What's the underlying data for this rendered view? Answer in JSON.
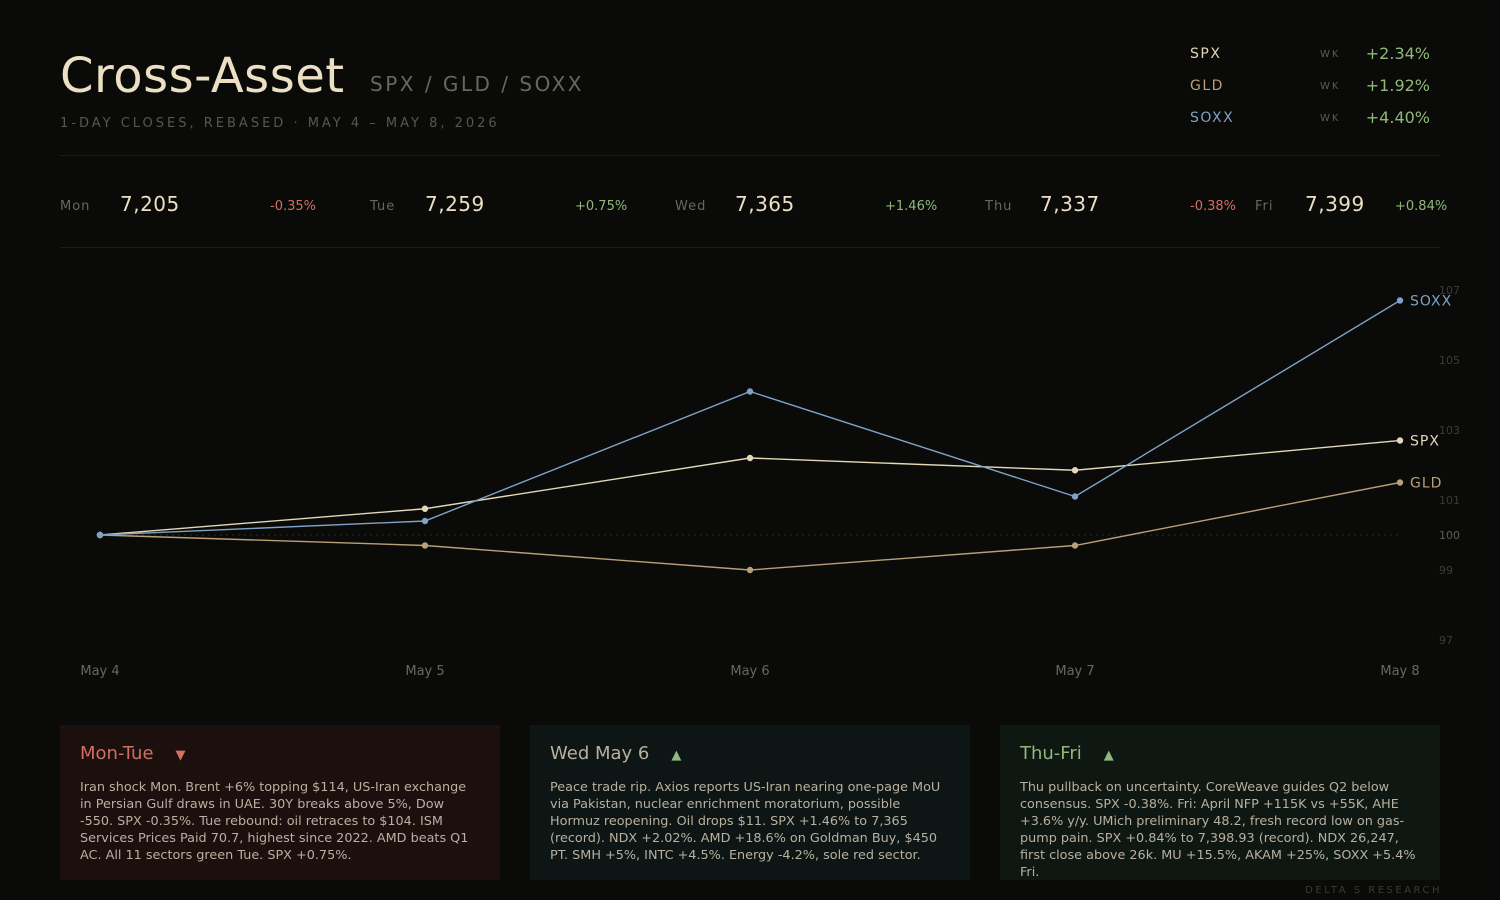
{
  "header": {
    "title": "Cross-Asset",
    "tickers": "SPX / GLD / SOXX",
    "subtitle": "1-DAY CLOSES, REBASED · MAY 4 – MAY 8, 2026"
  },
  "weekly": [
    {
      "name": "SPX",
      "label": "WK",
      "value": "+2.34%",
      "color": "#e3d8b8"
    },
    {
      "name": "GLD",
      "label": "WK",
      "value": "+1.92%",
      "color": "#b8a079"
    },
    {
      "name": "SOXX",
      "label": "WK",
      "value": "+4.40%",
      "color": "#7fa3c7"
    }
  ],
  "days": [
    {
      "day": "Mon",
      "close": "7,205",
      "change": "-0.35%",
      "dir": "neg"
    },
    {
      "day": "Tue",
      "close": "7,259",
      "change": "+0.75%",
      "dir": "pos"
    },
    {
      "day": "Wed",
      "close": "7,365",
      "change": "+1.46%",
      "dir": "pos"
    },
    {
      "day": "Thu",
      "close": "7,337",
      "change": "-0.38%",
      "dir": "neg"
    },
    {
      "day": "Fri",
      "close": "7,399",
      "change": "+0.84%",
      "dir": "pos"
    }
  ],
  "chart_data": {
    "type": "line",
    "x": [
      "May 4",
      "May 5",
      "May 6",
      "May 7",
      "May 8"
    ],
    "y_ticks": [
      97,
      99,
      100,
      101,
      103,
      105,
      107
    ],
    "ylim": [
      96.6,
      107.6
    ],
    "baseline": 100,
    "grid": false,
    "legend": "end-of-line labels",
    "series": [
      {
        "name": "SOXX",
        "color": "#7fa3c7",
        "values": [
          100,
          100.4,
          104.1,
          101.1,
          106.7
        ]
      },
      {
        "name": "SPX",
        "color": "#e3d8b8",
        "values": [
          100,
          100.75,
          102.2,
          101.85,
          102.7
        ]
      },
      {
        "name": "GLD",
        "color": "#b8a079",
        "values": [
          100,
          99.7,
          99.0,
          99.7,
          101.5
        ]
      }
    ]
  },
  "panels": [
    {
      "title": "Mon-Tue",
      "arrow": "▼",
      "color": "#d07060",
      "bg": "#1b100d",
      "body": "Iran shock Mon. Brent +6% topping $114, US-Iran exchange in Persian Gulf draws in UAE. 30Y breaks above 5%, Dow -550. SPX -0.35%. Tue rebound: oil retraces to $104. ISM Services Prices Paid 70.7, highest since 2022. AMD beats Q1 AC. All 11 sectors green Tue. SPX +0.75%."
    },
    {
      "title": "Wed May 6",
      "arrow": "▲",
      "color": "#b8b0a0",
      "arrow_color": "#8fb87a",
      "bg": "#0d1615",
      "body": "Peace trade rip. Axios reports US-Iran nearing one-page MoU via Pakistan, nuclear enrichment moratorium, possible Hormuz reopening. Oil drops $11. SPX +1.46% to 7,365 (record). NDX +2.02%. AMD +18.6% on Goldman Buy, $450 PT. SMH +5%, INTC +4.5%. Energy -4.2%, sole red sector."
    },
    {
      "title": "Thu-Fri",
      "arrow": "▲",
      "color": "#8fb87a",
      "bg": "#0f1712",
      "body": "Thu pullback on uncertainty. CoreWeave guides Q2 below consensus. SPX -0.38%. Fri: April NFP +115K vs +55K, AHE +3.6% y/y. UMich preliminary 48.2, fresh record low on gas-pump pain. SPX +0.84% to 7,398.93 (record). NDX 26,247, first close above 26k. MU +15.5%, AKAM +25%, SOXX +5.4% Fri."
    }
  ],
  "footer": "DELTA S RESEARCH"
}
